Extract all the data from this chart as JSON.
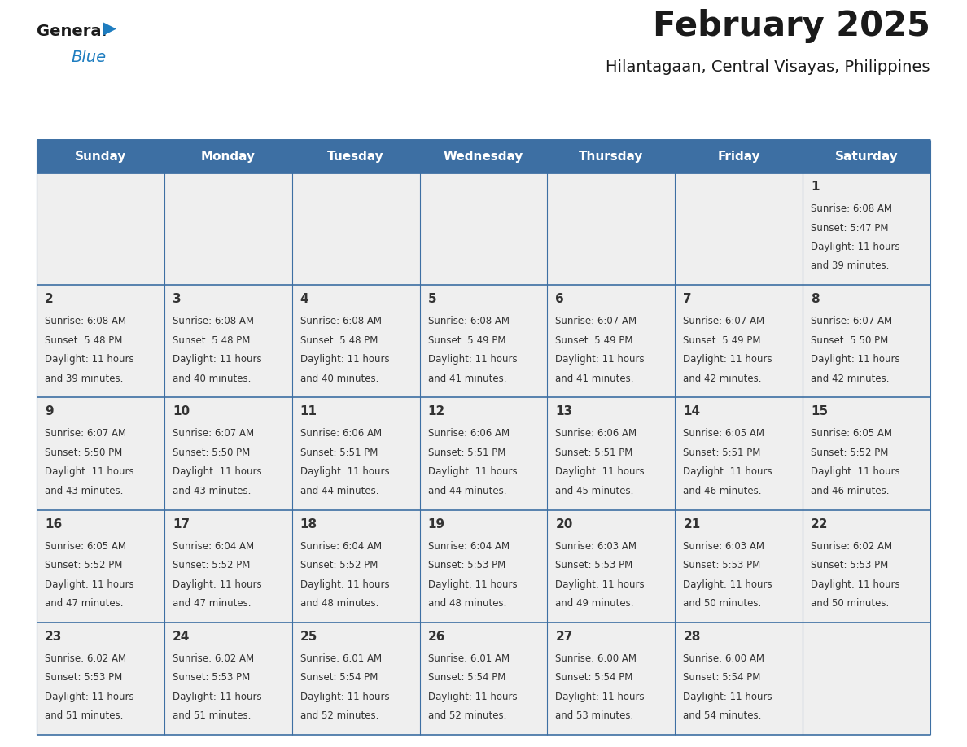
{
  "title": "February 2025",
  "subtitle": "Hilantagaan, Central Visayas, Philippines",
  "days_of_week": [
    "Sunday",
    "Monday",
    "Tuesday",
    "Wednesday",
    "Thursday",
    "Friday",
    "Saturday"
  ],
  "header_bg": "#3d6fa3",
  "header_text": "#ffffff",
  "cell_bg": "#efefef",
  "day_number_color": "#333333",
  "info_text_color": "#333333",
  "line_color": "#3d6fa3",
  "title_color": "#1a1a1a",
  "subtitle_color": "#1a1a1a",
  "logo_general_color": "#1a1a1a",
  "logo_blue_color": "#1e7dc0",
  "calendar_data": [
    [
      null,
      null,
      null,
      null,
      null,
      null,
      {
        "day": 1,
        "sunrise": "6:08 AM",
        "sunset": "5:47 PM",
        "daylight": "11 hours and 39 minutes."
      }
    ],
    [
      {
        "day": 2,
        "sunrise": "6:08 AM",
        "sunset": "5:48 PM",
        "daylight": "11 hours and 39 minutes."
      },
      {
        "day": 3,
        "sunrise": "6:08 AM",
        "sunset": "5:48 PM",
        "daylight": "11 hours and 40 minutes."
      },
      {
        "day": 4,
        "sunrise": "6:08 AM",
        "sunset": "5:48 PM",
        "daylight": "11 hours and 40 minutes."
      },
      {
        "day": 5,
        "sunrise": "6:08 AM",
        "sunset": "5:49 PM",
        "daylight": "11 hours and 41 minutes."
      },
      {
        "day": 6,
        "sunrise": "6:07 AM",
        "sunset": "5:49 PM",
        "daylight": "11 hours and 41 minutes."
      },
      {
        "day": 7,
        "sunrise": "6:07 AM",
        "sunset": "5:49 PM",
        "daylight": "11 hours and 42 minutes."
      },
      {
        "day": 8,
        "sunrise": "6:07 AM",
        "sunset": "5:50 PM",
        "daylight": "11 hours and 42 minutes."
      }
    ],
    [
      {
        "day": 9,
        "sunrise": "6:07 AM",
        "sunset": "5:50 PM",
        "daylight": "11 hours and 43 minutes."
      },
      {
        "day": 10,
        "sunrise": "6:07 AM",
        "sunset": "5:50 PM",
        "daylight": "11 hours and 43 minutes."
      },
      {
        "day": 11,
        "sunrise": "6:06 AM",
        "sunset": "5:51 PM",
        "daylight": "11 hours and 44 minutes."
      },
      {
        "day": 12,
        "sunrise": "6:06 AM",
        "sunset": "5:51 PM",
        "daylight": "11 hours and 44 minutes."
      },
      {
        "day": 13,
        "sunrise": "6:06 AM",
        "sunset": "5:51 PM",
        "daylight": "11 hours and 45 minutes."
      },
      {
        "day": 14,
        "sunrise": "6:05 AM",
        "sunset": "5:51 PM",
        "daylight": "11 hours and 46 minutes."
      },
      {
        "day": 15,
        "sunrise": "6:05 AM",
        "sunset": "5:52 PM",
        "daylight": "11 hours and 46 minutes."
      }
    ],
    [
      {
        "day": 16,
        "sunrise": "6:05 AM",
        "sunset": "5:52 PM",
        "daylight": "11 hours and 47 minutes."
      },
      {
        "day": 17,
        "sunrise": "6:04 AM",
        "sunset": "5:52 PM",
        "daylight": "11 hours and 47 minutes."
      },
      {
        "day": 18,
        "sunrise": "6:04 AM",
        "sunset": "5:52 PM",
        "daylight": "11 hours and 48 minutes."
      },
      {
        "day": 19,
        "sunrise": "6:04 AM",
        "sunset": "5:53 PM",
        "daylight": "11 hours and 48 minutes."
      },
      {
        "day": 20,
        "sunrise": "6:03 AM",
        "sunset": "5:53 PM",
        "daylight": "11 hours and 49 minutes."
      },
      {
        "day": 21,
        "sunrise": "6:03 AM",
        "sunset": "5:53 PM",
        "daylight": "11 hours and 50 minutes."
      },
      {
        "day": 22,
        "sunrise": "6:02 AM",
        "sunset": "5:53 PM",
        "daylight": "11 hours and 50 minutes."
      }
    ],
    [
      {
        "day": 23,
        "sunrise": "6:02 AM",
        "sunset": "5:53 PM",
        "daylight": "11 hours and 51 minutes."
      },
      {
        "day": 24,
        "sunrise": "6:02 AM",
        "sunset": "5:53 PM",
        "daylight": "11 hours and 51 minutes."
      },
      {
        "day": 25,
        "sunrise": "6:01 AM",
        "sunset": "5:54 PM",
        "daylight": "11 hours and 52 minutes."
      },
      {
        "day": 26,
        "sunrise": "6:01 AM",
        "sunset": "5:54 PM",
        "daylight": "11 hours and 52 minutes."
      },
      {
        "day": 27,
        "sunrise": "6:00 AM",
        "sunset": "5:54 PM",
        "daylight": "11 hours and 53 minutes."
      },
      {
        "day": 28,
        "sunrise": "6:00 AM",
        "sunset": "5:54 PM",
        "daylight": "11 hours and 54 minutes."
      },
      null
    ]
  ]
}
